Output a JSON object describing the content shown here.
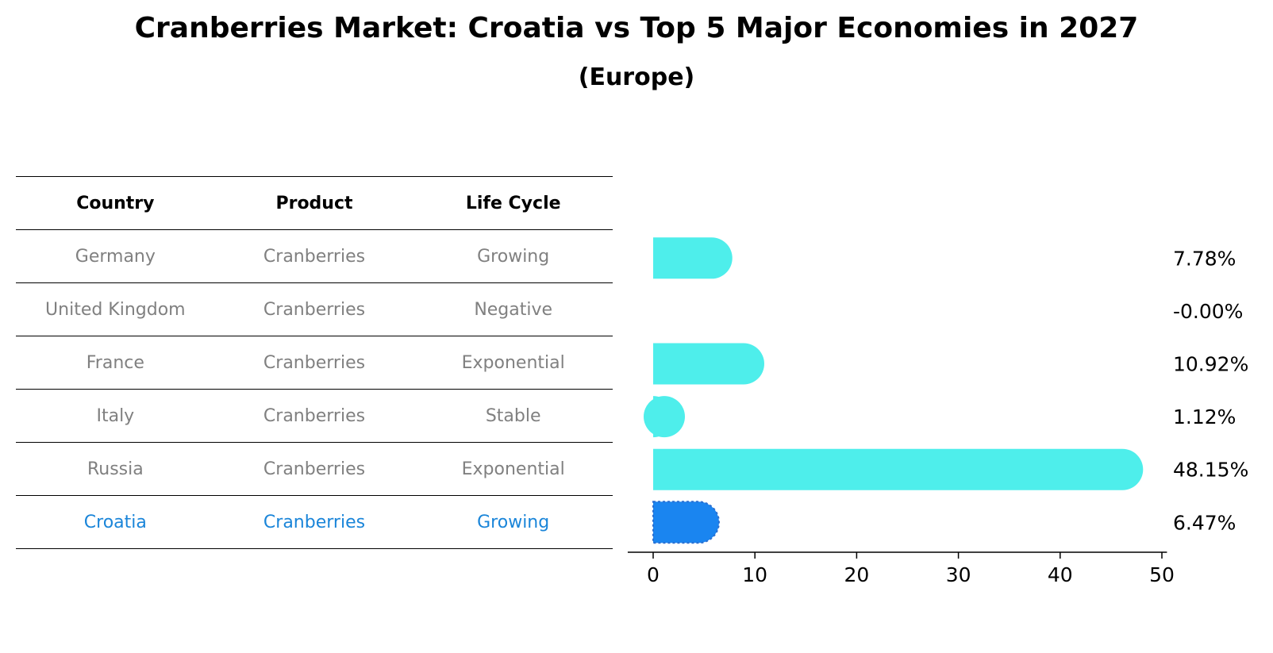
{
  "title": "Cranberries Market: Croatia vs Top 5 Major Economies in 2027",
  "subtitle": "(Europe)",
  "table": {
    "headers": [
      "Country",
      "Product",
      "Life Cycle"
    ],
    "rows": [
      [
        "Germany",
        "Cranberries",
        "Growing"
      ],
      [
        "United Kingdom",
        "Cranberries",
        "Negative"
      ],
      [
        "France",
        "Cranberries",
        "Exponential"
      ],
      [
        "Italy",
        "Cranberries",
        "Stable"
      ],
      [
        "Russia",
        "Cranberries",
        "Exponential"
      ],
      [
        "Croatia",
        "Cranberries",
        "Growing"
      ]
    ]
  },
  "colors": {
    "bar": "#4eeeeb",
    "highlight": "#1a85f0",
    "highlight_text": "#1a85d9",
    "muted_text": "#808080"
  },
  "chart_data": {
    "type": "bar",
    "orientation": "horizontal",
    "categories": [
      "Germany",
      "United Kingdom",
      "France",
      "Italy",
      "Russia",
      "Croatia"
    ],
    "values": [
      7.78,
      -0.0,
      10.92,
      1.12,
      48.15,
      6.47
    ],
    "value_labels": [
      "7.78%",
      "-0.00%",
      "10.92%",
      "1.12%",
      "48.15%",
      "6.47%"
    ],
    "highlight": "Croatia",
    "xlim": [
      -2.5,
      50.5
    ],
    "xticks": [
      0,
      10,
      20,
      30,
      40,
      50
    ],
    "xlabel": "",
    "ylabel": "",
    "grid": false
  }
}
